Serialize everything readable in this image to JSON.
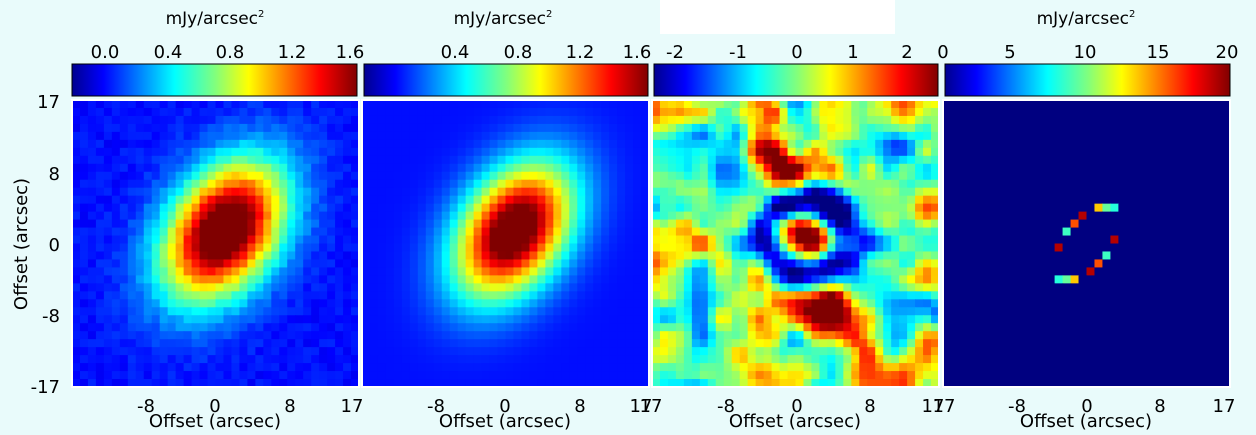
{
  "figure": {
    "background": "#e9fbfb",
    "colormap": "jet"
  },
  "chart_data": [
    {
      "type": "heatmap",
      "panel": "data",
      "colorbar_label": "mJy/arcsec",
      "colorbar_label_exponent": "2",
      "colorbar_ticks": [
        "0.0",
        "0.4",
        "0.8",
        "1.2",
        "1.6"
      ],
      "colorbar_range": [
        0.0,
        1.6
      ],
      "xlabel": "Offset (arcsec)",
      "ylabel": "Offset (arcsec)",
      "xticks": [
        "-8",
        "0",
        "8",
        "17"
      ],
      "yticks": [
        "17",
        "8",
        "0",
        "-8",
        "-17"
      ],
      "xlim": [
        -17,
        17
      ],
      "ylim": [
        -17,
        17
      ],
      "source": {
        "x0": 1,
        "y0": 1.5,
        "sigma_major": 6.2,
        "sigma_minor": 4.2,
        "pa_deg": 35,
        "peak": 1.65,
        "floor": 0.22
      }
    },
    {
      "type": "heatmap",
      "panel": "model",
      "colorbar_label": "mJy/arcsec",
      "colorbar_label_exponent": "2",
      "colorbar_ticks": [
        "0.4",
        "0.8",
        "1.2",
        "1.6"
      ],
      "colorbar_range": [
        0.0,
        1.6
      ],
      "xlabel": "Offset (arcsec)",
      "xticks": [
        "-8",
        "0",
        "8",
        "17"
      ],
      "xlim": [
        -17,
        17
      ],
      "ylim": [
        -17,
        17
      ],
      "source": {
        "x0": 1,
        "y0": 1.5,
        "sigma_major": 6.0,
        "sigma_minor": 4.0,
        "pa_deg": 35,
        "peak": 1.6,
        "floor": 0.22
      }
    },
    {
      "type": "heatmap",
      "panel": "residual",
      "colorbar_label": "",
      "colorbar_ticks": [
        "-2",
        "-1",
        "0",
        "1",
        "2"
      ],
      "colorbar_range": [
        -2.5,
        2.5
      ],
      "xlabel": "Offset (arcsec)",
      "xticks": [
        "-8",
        "0",
        "8",
        "17"
      ],
      "xlim": [
        -17,
        17
      ],
      "ylim": [
        -17,
        17
      ]
    },
    {
      "type": "heatmap",
      "panel": "ring model",
      "colorbar_label": "mJy/arcsec",
      "colorbar_label_exponent": "2",
      "colorbar_ticks": [
        "0",
        "5",
        "10",
        "15",
        "20"
      ],
      "colorbar_range": [
        0,
        20
      ],
      "xlabel": "Offset (arcsec)",
      "xticks": [
        "-8",
        "0",
        "8",
        "17"
      ],
      "xlim": [
        -17,
        17
      ],
      "ylim": [
        -17,
        17
      ],
      "ring": {
        "x0": 0,
        "y0": 0,
        "semi_major": 5.2,
        "semi_minor": 2.6,
        "pa_deg": 35
      }
    }
  ]
}
